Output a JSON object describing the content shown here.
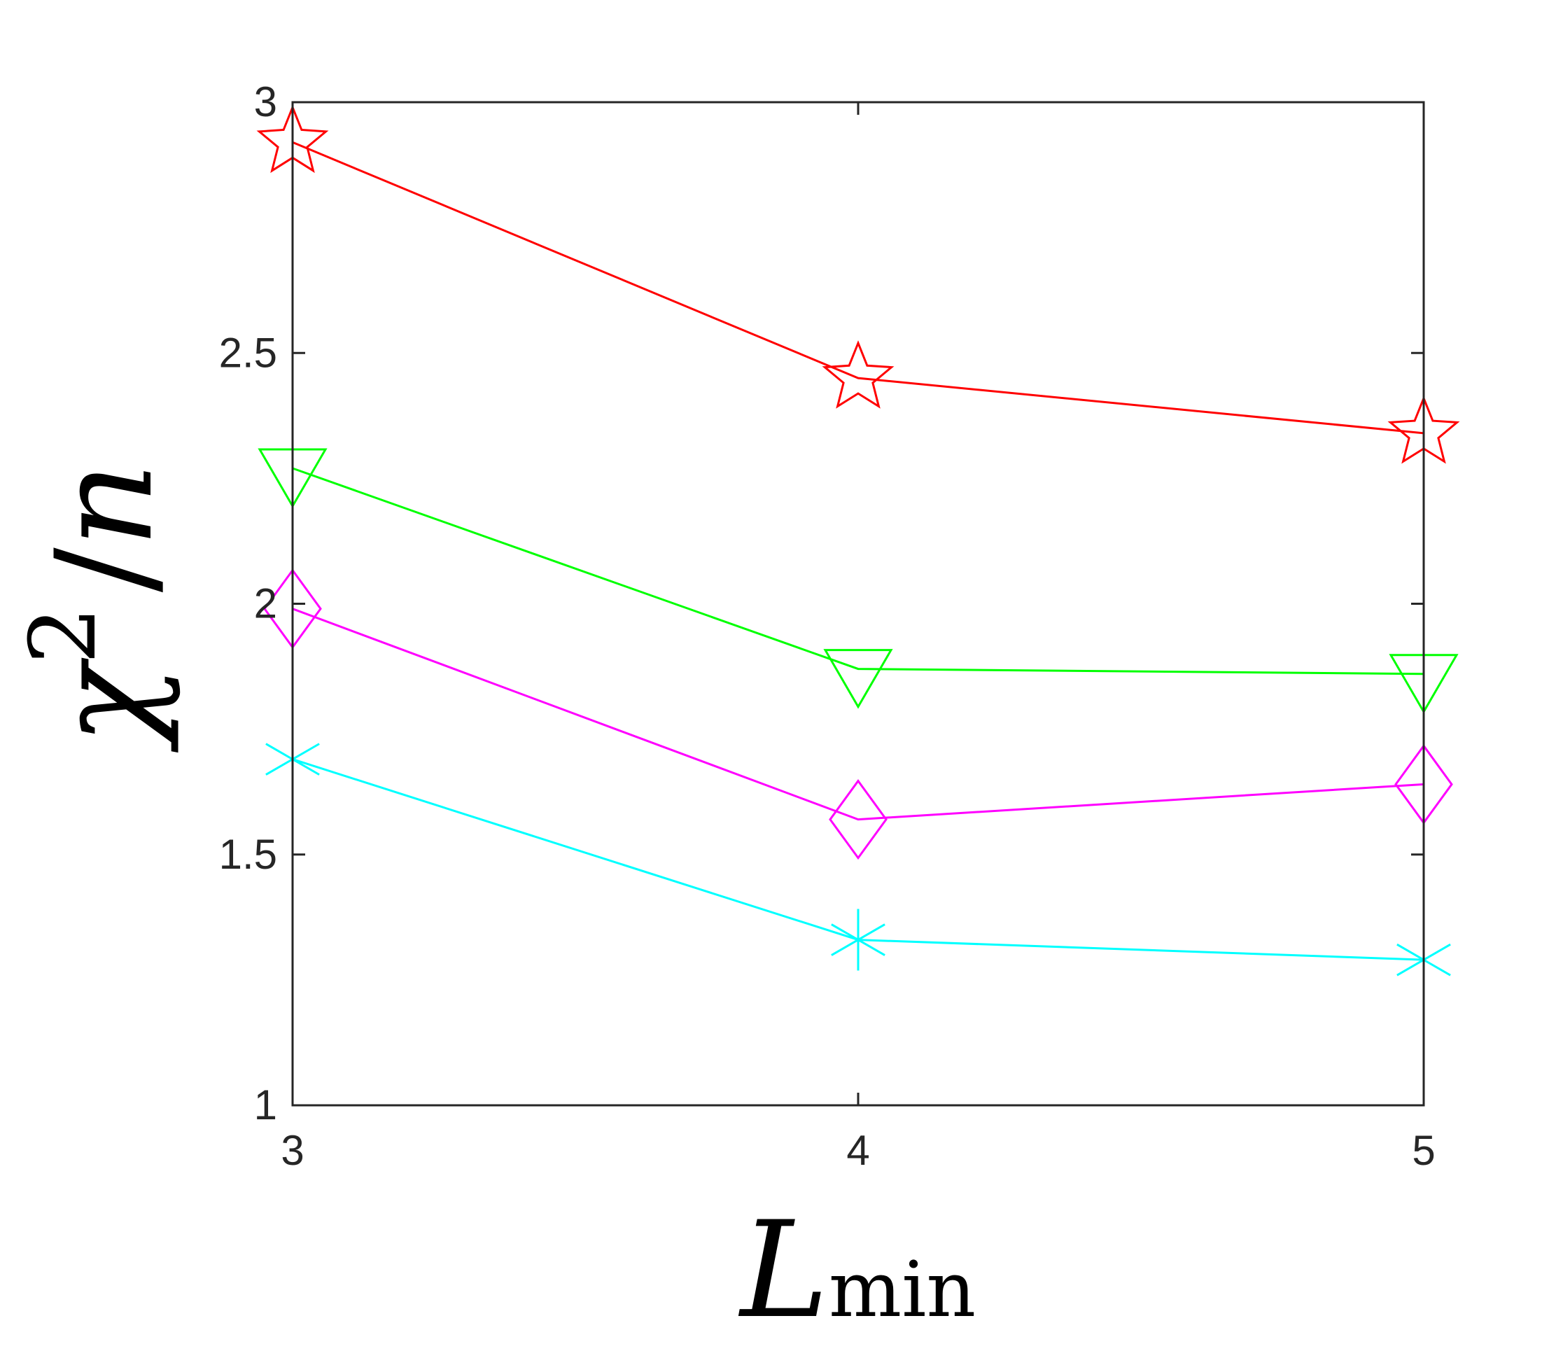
{
  "chart_data": {
    "type": "line",
    "x": [
      3,
      4,
      5
    ],
    "xticks": [
      "3",
      "4",
      "5"
    ],
    "yticks": [
      "1",
      "1.5",
      "2",
      "2.5",
      "3"
    ],
    "xlabel": "L",
    "xlabel_sub": "min",
    "ylabel": "χ2/n",
    "ylabel_parts": {
      "base": "χ",
      "sup": "2",
      "slash": "/",
      "denom": "n"
    },
    "xlim": [
      3,
      5
    ],
    "ylim": [
      1,
      3
    ],
    "grid": false,
    "series": [
      {
        "color": "#ff0000",
        "marker": "star-icon",
        "values": [
          2.92,
          2.45,
          2.34
        ]
      },
      {
        "color": "#00ff00",
        "marker": "triangle-down-icon",
        "values": [
          2.27,
          1.87,
          1.86
        ]
      },
      {
        "color": "#ff00ff",
        "marker": "diamond-icon",
        "values": [
          1.99,
          1.57,
          1.64
        ]
      },
      {
        "color": "#00ffff",
        "marker": "asterisk-icon",
        "values": [
          1.69,
          1.33,
          1.29
        ]
      }
    ]
  }
}
